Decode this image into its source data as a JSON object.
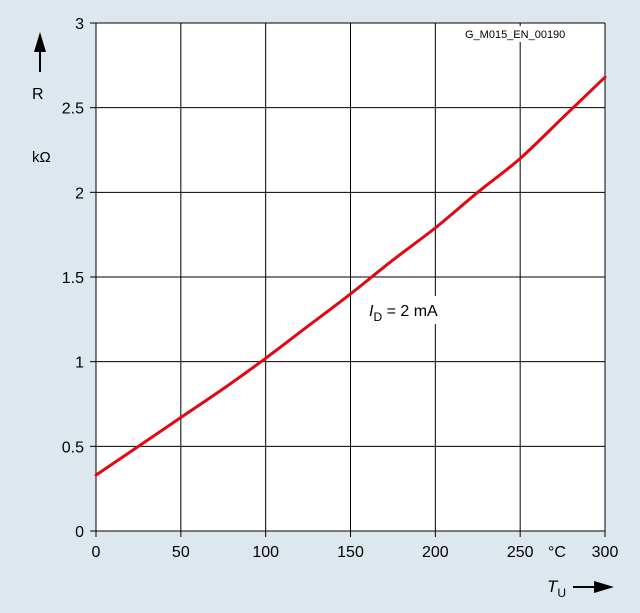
{
  "chart_data": {
    "type": "line",
    "code": "G_M015_EN_00190",
    "xlim": [
      0,
      300
    ],
    "ylim": [
      0,
      3
    ],
    "x_ticks": [
      "0",
      "50",
      "100",
      "150",
      "200",
      "250",
      "300"
    ],
    "x_tick_values": [
      0,
      50,
      100,
      150,
      200,
      250,
      300
    ],
    "y_ticks": [
      "0",
      "0.5",
      "1",
      "1.5",
      "2",
      "2.5",
      "3"
    ],
    "y_tick_values": [
      0,
      0.5,
      1,
      1.5,
      2,
      2.5,
      3
    ],
    "x_unit": "°C",
    "y_label": "R",
    "y_unit": "kΩ",
    "x_label_main": "T",
    "x_label_sub": "U",
    "grid": true,
    "series": [
      {
        "label_main": "I",
        "label_sub": "D",
        "label_rest": " = 2 mA",
        "color": "#e30613",
        "x": [
          0,
          25,
          50,
          75,
          100,
          125,
          150,
          175,
          200,
          225,
          250,
          275,
          300
        ],
        "values": [
          0.33,
          0.5,
          0.67,
          0.84,
          1.02,
          1.21,
          1.4,
          1.6,
          1.79,
          2.0,
          2.2,
          2.44,
          2.68
        ]
      }
    ]
  }
}
